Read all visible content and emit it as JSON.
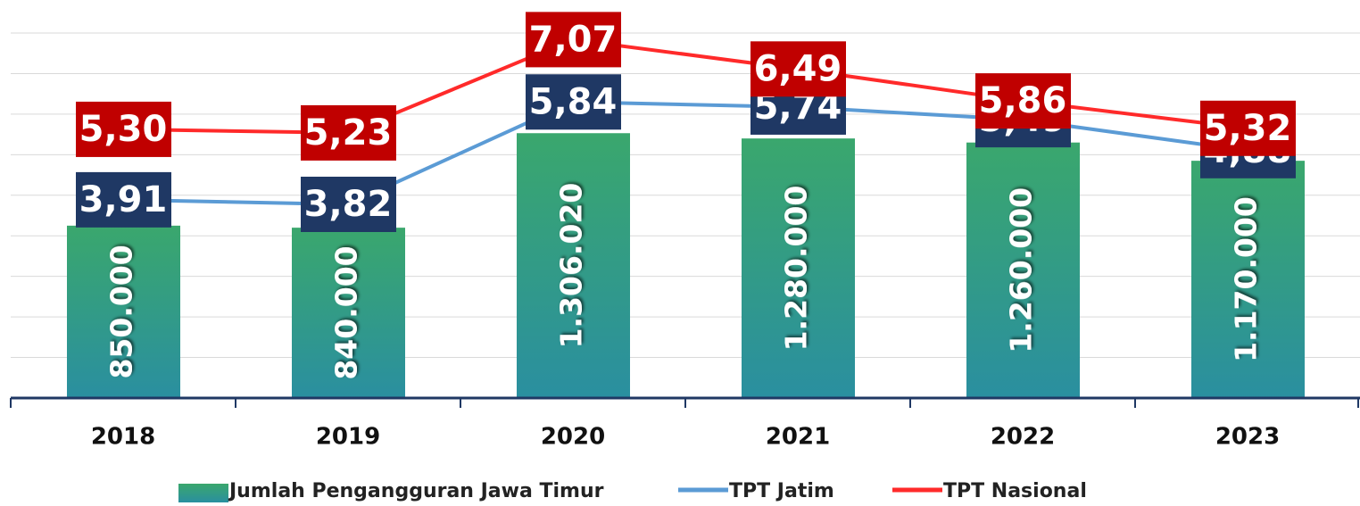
{
  "chart_data": {
    "type": "bar",
    "categories": [
      "2018",
      "2019",
      "2020",
      "2021",
      "2022",
      "2023"
    ],
    "ylim": [
      0,
      1800000
    ],
    "y2lim": [
      0,
      7.2
    ],
    "grid": true,
    "legend": "bottom",
    "series": [
      {
        "name": "Jumlah Pengangguran Jawa Timur",
        "type": "bar",
        "color": "#3aa76d",
        "values": [
          850000,
          840000,
          1306020,
          1280000,
          1260000,
          1170000
        ],
        "value_labels": [
          "850.000",
          "840.000",
          "1.306.020",
          "1.280.000",
          "1.260.000",
          "1.170.000"
        ]
      },
      {
        "name": "TPT Jatim",
        "type": "line",
        "axis": "y2",
        "color": "#5b9bd5",
        "label_box_color": "#1f3864",
        "values": [
          3.91,
          3.82,
          5.84,
          5.74,
          5.49,
          4.88
        ],
        "value_labels": [
          "3,91",
          "3,82",
          "5,84",
          "5,74",
          "5,49",
          "4,88"
        ]
      },
      {
        "name": "TPT Nasional",
        "type": "line",
        "axis": "y2",
        "color": "#ff2a2a",
        "label_box_color": "#c00000",
        "values": [
          5.3,
          5.23,
          7.07,
          6.49,
          5.86,
          5.32
        ],
        "value_labels": [
          "5,30",
          "5,23",
          "7,07",
          "6,49",
          "5,86",
          "5,32"
        ]
      }
    ]
  }
}
